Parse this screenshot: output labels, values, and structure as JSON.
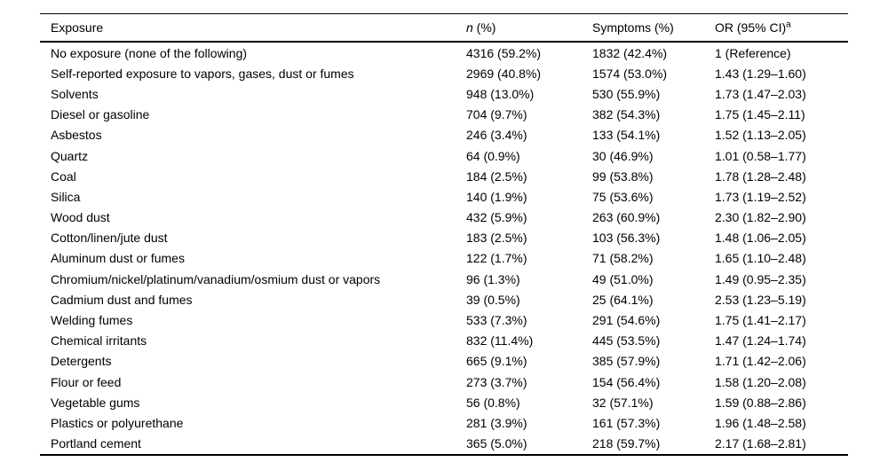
{
  "table": {
    "columns": {
      "exposure": "Exposure",
      "n_italic": "n",
      "n_rest": " (%)",
      "symptoms": "Symptoms (%)",
      "or_text": "OR (95% CI)",
      "or_superscript": "a"
    },
    "rows": [
      {
        "exposure": "No exposure (none of the following)",
        "n": "4316 (59.2%)",
        "symptoms": "1832 (42.4%)",
        "or": "1 (Reference)"
      },
      {
        "exposure": "Self-reported exposure to vapors, gases, dust or fumes",
        "n": "2969 (40.8%)",
        "symptoms": "1574 (53.0%)",
        "or": "1.43 (1.29–1.60)"
      },
      {
        "exposure": "Solvents",
        "n": "948 (13.0%)",
        "symptoms": "530 (55.9%)",
        "or": "1.73 (1.47–2.03)"
      },
      {
        "exposure": "Diesel or gasoline",
        "n": "704 (9.7%)",
        "symptoms": "382 (54.3%)",
        "or": "1.75 (1.45–2.11)"
      },
      {
        "exposure": "Asbestos",
        "n": "246 (3.4%)",
        "symptoms": "133 (54.1%)",
        "or": "1.52 (1.13–2.05)"
      },
      {
        "exposure": "Quartz",
        "n": "64 (0.9%)",
        "symptoms": "30 (46.9%)",
        "or": "1.01 (0.58–1.77)"
      },
      {
        "exposure": "Coal",
        "n": "184 (2.5%)",
        "symptoms": "99 (53.8%)",
        "or": "1.78 (1.28–2.48)"
      },
      {
        "exposure": "Silica",
        "n": "140 (1.9%)",
        "symptoms": "75 (53.6%)",
        "or": "1.73 (1.19–2.52)"
      },
      {
        "exposure": "Wood dust",
        "n": "432 (5.9%)",
        "symptoms": "263 (60.9%)",
        "or": "2.30 (1.82–2.90)"
      },
      {
        "exposure": "Cotton/linen/jute dust",
        "n": "183 (2.5%)",
        "symptoms": "103 (56.3%)",
        "or": "1.48 (1.06–2.05)"
      },
      {
        "exposure": "Aluminum dust or fumes",
        "n": "122 (1.7%)",
        "symptoms": "71 (58.2%)",
        "or": "1.65 (1.10–2.48)"
      },
      {
        "exposure": "Chromium/nickel/platinum/vanadium/osmium dust or vapors",
        "n": "96 (1.3%)",
        "symptoms": "49 (51.0%)",
        "or": "1.49 (0.95–2.35)"
      },
      {
        "exposure": "Cadmium dust and fumes",
        "n": "39 (0.5%)",
        "symptoms": "25 (64.1%)",
        "or": "2.53 (1.23–5.19)"
      },
      {
        "exposure": "Welding fumes",
        "n": "533 (7.3%)",
        "symptoms": "291 (54.6%)",
        "or": "1.75 (1.41–2.17)"
      },
      {
        "exposure": "Chemical irritants",
        "n": "832 (11.4%)",
        "symptoms": "445 (53.5%)",
        "or": "1.47 (1.24–1.74)"
      },
      {
        "exposure": "Detergents",
        "n": "665 (9.1%)",
        "symptoms": "385 (57.9%)",
        "or": "1.71 (1.42–2.06)"
      },
      {
        "exposure": "Flour or feed",
        "n": "273 (3.7%)",
        "symptoms": "154 (56.4%)",
        "or": "1.58 (1.20–2.08)"
      },
      {
        "exposure": "Vegetable gums",
        "n": "56 (0.8%)",
        "symptoms": "32 (57.1%)",
        "or": "1.59 (0.88–2.86)"
      },
      {
        "exposure": "Plastics or polyurethane",
        "n": "281 (3.9%)",
        "symptoms": "161 (57.3%)",
        "or": "1.96 (1.48–2.58)"
      },
      {
        "exposure": "Portland cement",
        "n": "365 (5.0%)",
        "symptoms": "218 (59.7%)",
        "or": "2.17 (1.68–2.81)"
      }
    ]
  }
}
